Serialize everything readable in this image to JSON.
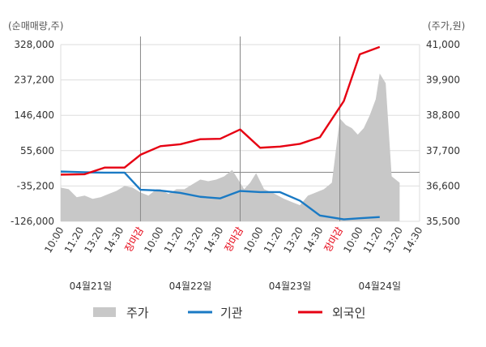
{
  "chart_data": {
    "type": "line",
    "y_left_unit": "(순매매량,주)",
    "y_right_unit": "(주가,원)",
    "y_left_ticks": [
      "328,000",
      "237,200",
      "146,400",
      "55,600",
      "-35,200",
      "-126,000"
    ],
    "y_right_ticks": [
      "41,000",
      "39,900",
      "38,800",
      "37,700",
      "36,600",
      "35,500"
    ],
    "ylim_left": [
      -126000,
      328000
    ],
    "ylim_right": [
      35500,
      41000
    ],
    "x_ticks": [
      "10:00",
      "11:20",
      "13:20",
      "14:30",
      "장마감",
      "10:00",
      "11:20",
      "13:20",
      "14:30",
      "장마감",
      "10:00",
      "11:20",
      "13:20",
      "14:30",
      "장마감",
      "10:00",
      "11:20",
      "13:20",
      "14:30"
    ],
    "x_tick_colors": [
      "#333333",
      "#333333",
      "#333333",
      "#333333",
      "#e60012",
      "#333333",
      "#333333",
      "#333333",
      "#333333",
      "#e60012",
      "#333333",
      "#333333",
      "#333333",
      "#333333",
      "#e60012",
      "#333333",
      "#333333",
      "#333333",
      "#333333"
    ],
    "dates": [
      "04월21일",
      "04월22일",
      "04월23일",
      "04월24일"
    ],
    "legend": [
      "주가",
      "기관",
      "외국인"
    ],
    "colors": {
      "price": "#c8c8c8",
      "institution": "#1a7ac4",
      "foreign": "#e60012",
      "divider": "#888888",
      "grid": "#dddddd"
    },
    "series": [
      {
        "name": "기관",
        "x": [
          0,
          1.2,
          2.2,
          3.2,
          4.0,
          5.0,
          6.0,
          7.0,
          8.0,
          9.0,
          10.0,
          11.0,
          12.0,
          13.0,
          14.2,
          15.0,
          16.0
        ],
        "values": [
          2000,
          0,
          -1000,
          -1000,
          -45000,
          -47000,
          -53000,
          -63000,
          -67000,
          -48000,
          -51000,
          -51000,
          -73000,
          -111000,
          -121000,
          -118000,
          -115000
        ]
      },
      {
        "name": "외국인",
        "x": [
          0,
          1.2,
          2.2,
          3.2,
          4.0,
          5.0,
          6.0,
          7.0,
          8.0,
          9.0,
          10.0,
          11.0,
          12.0,
          13.0,
          14.2,
          15.0,
          16.0
        ],
        "values": [
          -6000,
          -5000,
          12000,
          12000,
          45000,
          67000,
          72000,
          85000,
          86000,
          110000,
          63000,
          66000,
          73000,
          90000,
          183000,
          303000,
          322000
        ]
      },
      {
        "name": "주가",
        "x": [
          0.0,
          0.4,
          0.8,
          1.2,
          1.6,
          2.0,
          2.4,
          2.8,
          3.2,
          3.6,
          4.0,
          4.4,
          4.8,
          5.0,
          5.4,
          5.8,
          6.2,
          6.6,
          7.0,
          7.4,
          7.8,
          8.2,
          8.6,
          9.0,
          9.2,
          9.5,
          9.8,
          10.2,
          10.6,
          10.9,
          11.2,
          11.6,
          12.0,
          12.4,
          12.8,
          13.2,
          13.6,
          14.0,
          14.3,
          14.6,
          14.9,
          15.2,
          15.5,
          15.8,
          16.0,
          16.3,
          16.6,
          17.0
        ],
        "values": [
          36550,
          36500,
          36250,
          36300,
          36200,
          36250,
          36350,
          36450,
          36600,
          36550,
          36400,
          36300,
          36500,
          36500,
          36350,
          36500,
          36500,
          36650,
          36800,
          36750,
          36800,
          36900,
          37100,
          36700,
          36500,
          36700,
          37000,
          36500,
          36400,
          36300,
          36200,
          36100,
          36000,
          36300,
          36400,
          36500,
          36700,
          38700,
          38500,
          38400,
          38200,
          38400,
          38800,
          39300,
          40100,
          39800,
          36900,
          36700
        ]
      }
    ]
  }
}
